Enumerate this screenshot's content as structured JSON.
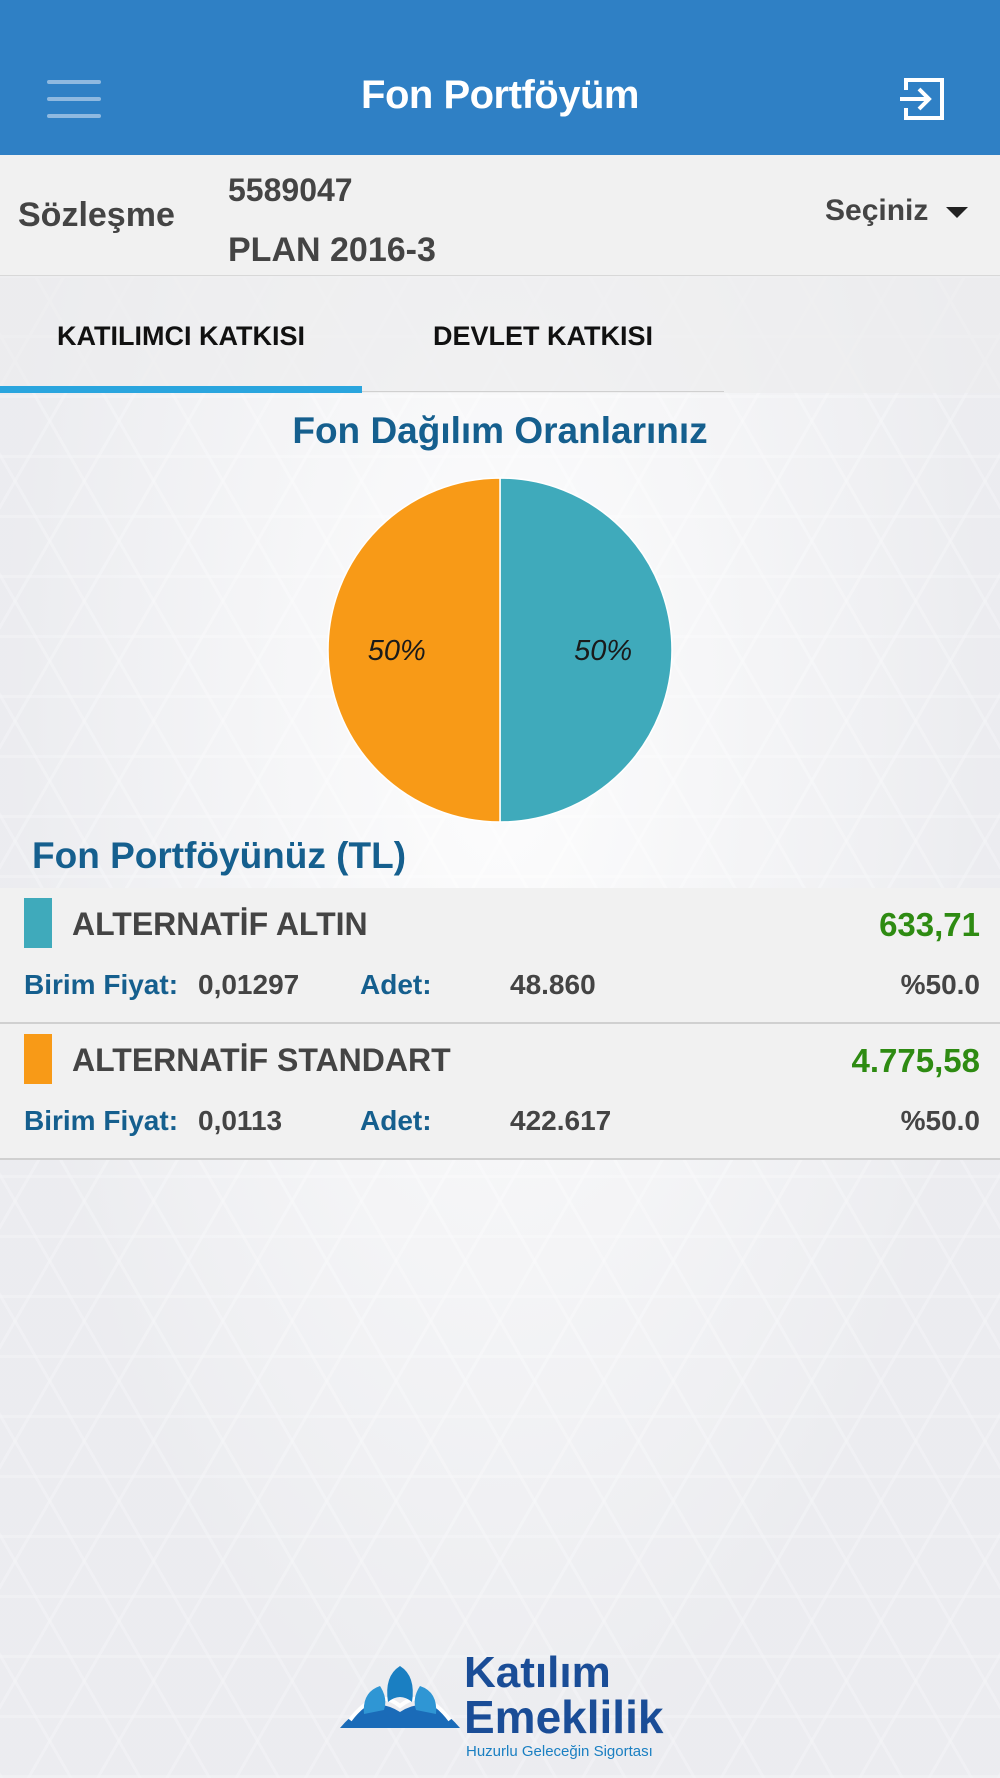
{
  "topbar": {
    "title": "Fon Portföyüm",
    "menu_icon": "hamburger-menu-icon",
    "logout_icon": "logout-icon"
  },
  "contract": {
    "label": "Sözleşme",
    "number": "5589047",
    "plan": "PLAN 2016-3",
    "select_label": "Seçiniz"
  },
  "tabs": [
    {
      "label": "KATILIMCI KATKISI",
      "active": true
    },
    {
      "label": "DEVLET KATKISI",
      "active": false
    }
  ],
  "chart": {
    "title": "Fon Dağılım Oranlarınız"
  },
  "chart_data": {
    "type": "pie",
    "title": "Fon Dağılım Oranlarınız",
    "slices": [
      {
        "label": "ALTERNATİF ALTIN",
        "value": 50,
        "display": "50%",
        "color": "#3faabb"
      },
      {
        "label": "ALTERNATİF STANDART",
        "value": 50,
        "display": "50%",
        "color": "#f89a17"
      }
    ]
  },
  "portfolio": {
    "title": "Fon Portföyünüz (TL)",
    "price_label": "Birim Fiyat:",
    "qty_label": "Adet:",
    "funds": [
      {
        "name": "ALTERNATİF ALTIN",
        "value": "633,71",
        "price": "0,01297",
        "qty": "48.860",
        "pct": "%50.0",
        "color": "#3faabb"
      },
      {
        "name": "ALTERNATİF STANDART",
        "value": "4.775,58",
        "price": "0,0113",
        "qty": "422.617",
        "pct": "%50.0",
        "color": "#f89a17"
      }
    ]
  },
  "logo": {
    "line1": "Katılım",
    "line2": "Emeklilik",
    "tagline": "Huzurlu Geleceğin Sigortası"
  }
}
